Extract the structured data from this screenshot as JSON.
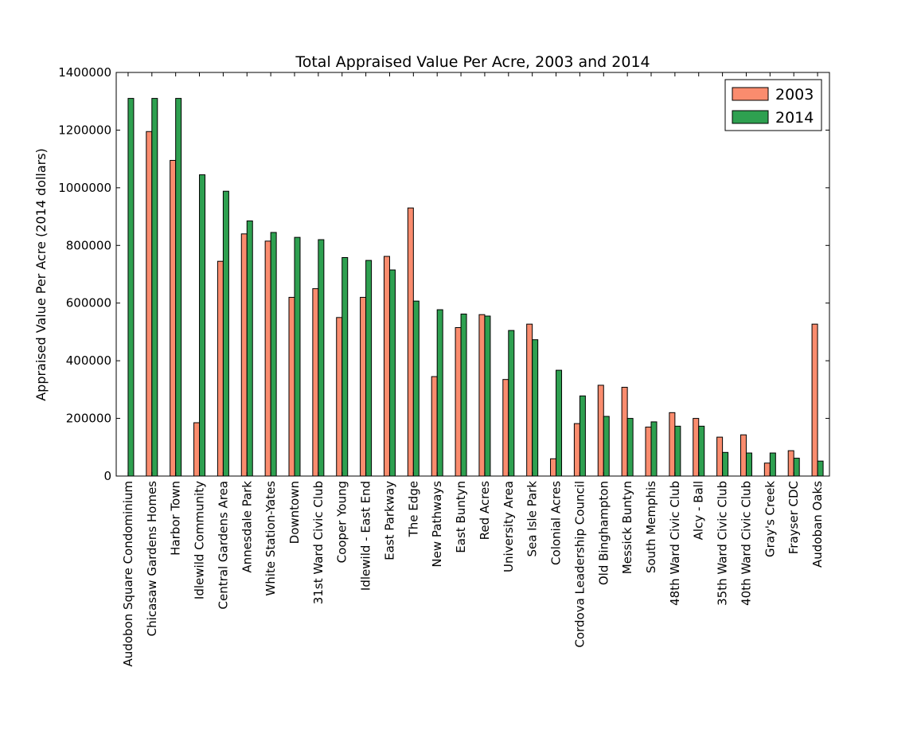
{
  "chart_data": {
    "type": "bar",
    "title": "Total Appraised Value Per Acre, 2003 and 2014",
    "xlabel": "",
    "ylabel": "Appraised Value Per Acre (2014 dollars)",
    "ylim": [
      0,
      1400000
    ],
    "yticks": [
      "0",
      "200000",
      "400000",
      "600000",
      "800000",
      "1000000",
      "1200000",
      "1400000"
    ],
    "grid": false,
    "legend_position": "top-right",
    "categories": [
      "Audobon Square Condominium",
      "Chicasaw Gardens Homes",
      "Harbor Town",
      "Idlewild Community",
      "Central Gardens Area",
      "Annesdale Park",
      "White Station-Yates",
      "Downtown",
      "31st Ward Civic Club",
      "Cooper Young",
      "Idlewild - East End",
      "East Parkway",
      "The Edge",
      "New Pathways",
      "East Buntyn",
      "Red Acres",
      "University Area",
      "Sea Isle Park",
      "Colonial Acres",
      "Cordova Leadership Council",
      "Old Binghampton",
      "Messick Buntyn",
      "South Memphis",
      "48th Ward Civic Club",
      "Alcy - Ball",
      "35th Ward Civic Club",
      "40th Ward Civic Club",
      "Gray's Creek",
      "Frayser CDC",
      "Audoban Oaks"
    ],
    "series": [
      {
        "name": "2003",
        "color": "#fa8c6e",
        "values": [
          0,
          1195000,
          1095000,
          185000,
          745000,
          840000,
          815000,
          620000,
          650000,
          550000,
          620000,
          762000,
          930000,
          345000,
          515000,
          560000,
          335000,
          527000,
          60000,
          182000,
          315000,
          308000,
          170000,
          220000,
          200000,
          135000,
          143000,
          45000,
          88000,
          527000
        ]
      },
      {
        "name": "2014",
        "color": "#2ea050",
        "values": [
          1310000,
          1310000,
          1310000,
          1045000,
          988000,
          885000,
          845000,
          828000,
          820000,
          758000,
          748000,
          715000,
          607000,
          577000,
          562000,
          555000,
          505000,
          473000,
          367000,
          278000,
          207000,
          200000,
          188000,
          173000,
          173000,
          82000,
          80000,
          80000,
          62000,
          52000
        ]
      }
    ]
  }
}
